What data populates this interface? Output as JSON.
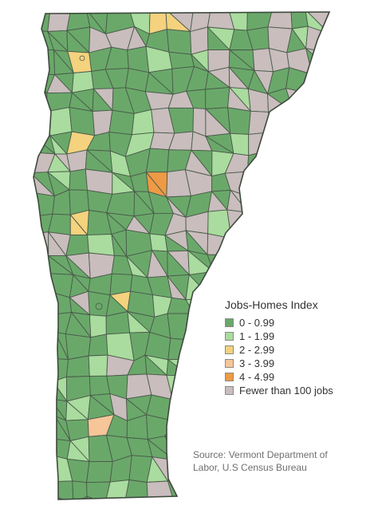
{
  "legend": {
    "title": "Jobs-Homes Index",
    "items": [
      {
        "label": "0 - 0.99",
        "color": "#6aa86a"
      },
      {
        "label": "1 - 1.99",
        "color": "#a9dc9e"
      },
      {
        "label": "2 - 2.99",
        "color": "#f4d27e"
      },
      {
        "label": "3 - 3.99",
        "color": "#f6c598"
      },
      {
        "label": "4 - 4.99",
        "color": "#ee9a45"
      },
      {
        "label": "Fewer than 100 jobs",
        "color": "#c9bdbd"
      }
    ]
  },
  "source": {
    "line1": "Source: Vermont Department of",
    "line2": "Labor, U.S Census Bureau"
  },
  "map": {
    "region": "Vermont towns",
    "border_color": "#4a5a4a"
  }
}
